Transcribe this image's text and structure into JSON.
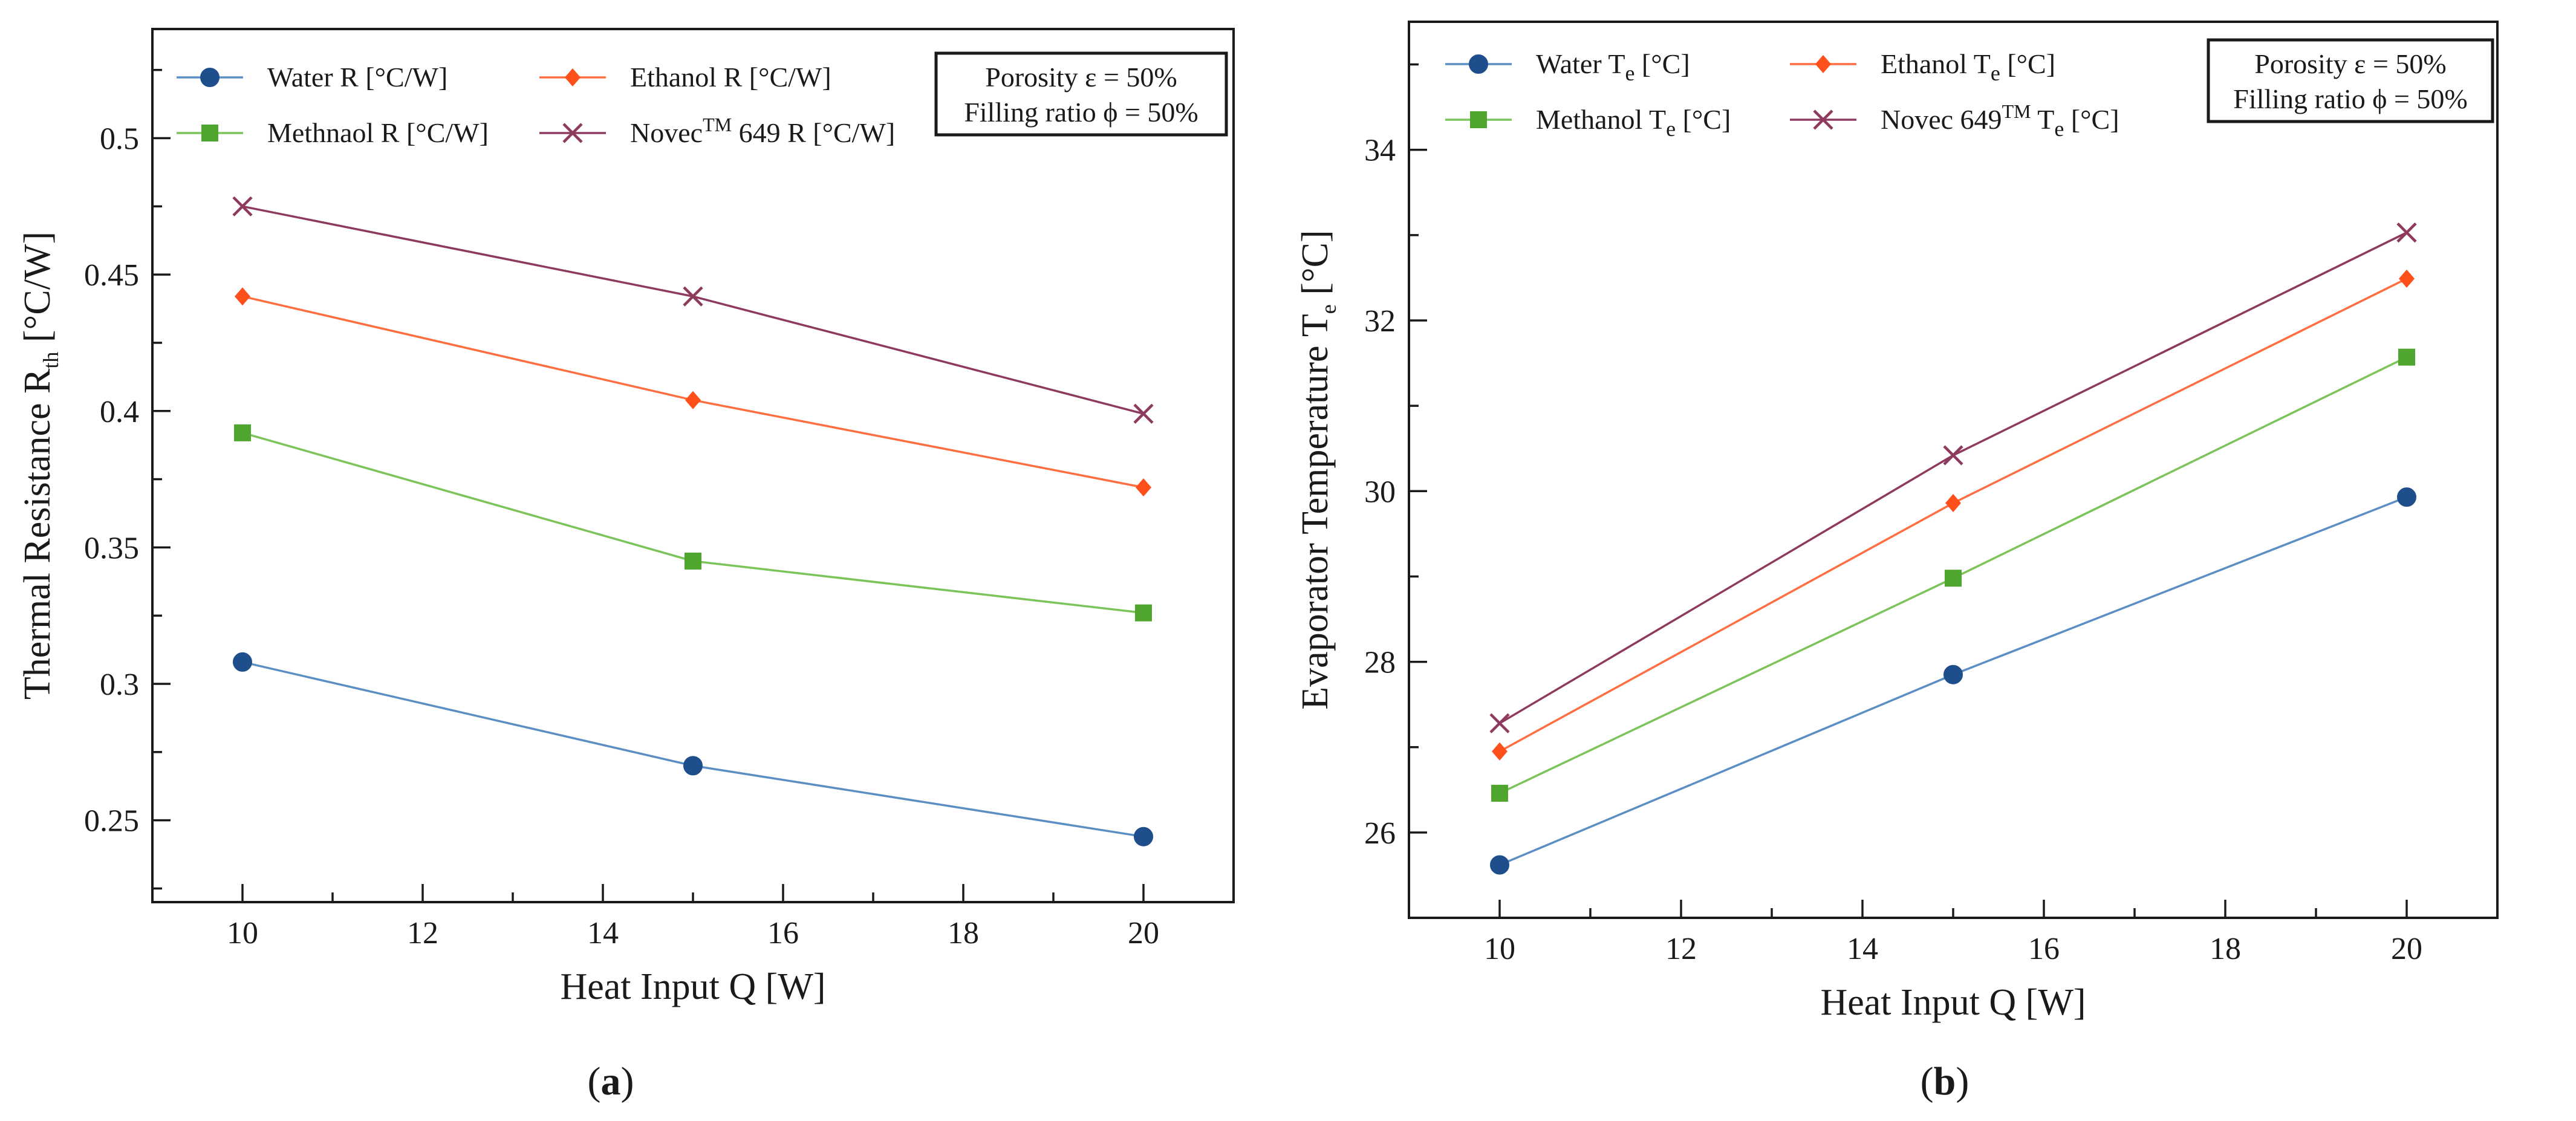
{
  "chart_data": [
    {
      "type": "line",
      "panel_label": "a",
      "xlabel": "Heat Input Q [W]",
      "ylabel": {
        "main": "Thermal Resistance R",
        "sub": "th",
        "units": " [°C/W]"
      },
      "xlim": [
        9,
        21
      ],
      "ylim": [
        0.22,
        0.54
      ],
      "x_ticks": [
        10,
        12,
        14,
        16,
        18,
        20
      ],
      "y_ticks": [
        0.25,
        0.3,
        0.35,
        0.4,
        0.45,
        0.5
      ],
      "y_tick_labels": [
        "0.25",
        "0.3",
        "0.35",
        "0.4",
        "0.45",
        "0.5"
      ],
      "x": [
        10,
        15,
        20
      ],
      "annotation": [
        "Porosity ε = 50%",
        "Filling ratio ϕ = 50%"
      ],
      "series": [
        {
          "name": "Water R [°C/W]",
          "parts": [
            {
              "t": "Water R [°C/W]"
            }
          ],
          "color": "#1f4e8c",
          "line_color": "#5b8fc4",
          "marker": "circle",
          "values": [
            0.308,
            0.27,
            0.244
          ]
        },
        {
          "name": "Ethanol R [°C/W]",
          "parts": [
            {
              "t": "Ethanol R [°C/W]"
            }
          ],
          "color": "#ff4f1a",
          "line_color": "#ff6e40",
          "marker": "diamond",
          "values": [
            0.442,
            0.404,
            0.372
          ]
        },
        {
          "name": "Methnaol R [°C/W]",
          "parts": [
            {
              "t": "Methnaol R [°C/W]"
            }
          ],
          "color": "#4fa52e",
          "line_color": "#7cc35a",
          "marker": "square",
          "values": [
            0.392,
            0.345,
            0.326
          ]
        },
        {
          "name": "NovecTM 649 R [°C/W]",
          "parts": [
            {
              "t": "Novec"
            },
            {
              "t": "TM",
              "sup": true
            },
            {
              "t": " 649 R [°C/W]"
            }
          ],
          "color": "#8e3a5e",
          "line_color": "#8e3a5e",
          "marker": "x",
          "values": [
            0.475,
            0.442,
            0.399
          ]
        }
      ]
    },
    {
      "type": "line",
      "panel_label": "b",
      "xlabel": "Heat Input Q [W]",
      "ylabel": {
        "main": "Evaporator Temperature T",
        "sub": "e",
        "units": " [°C]"
      },
      "xlim": [
        9,
        21
      ],
      "ylim": [
        25,
        35.5
      ],
      "x_ticks": [
        10,
        12,
        14,
        16,
        18,
        20
      ],
      "y_ticks": [
        26,
        28,
        30,
        32,
        34
      ],
      "y_tick_labels": [
        "26",
        "28",
        "30",
        "32",
        "34"
      ],
      "x": [
        10,
        15,
        20
      ],
      "annotation": [
        "Porosity ε = 50%",
        "Filling ratio ϕ = 50%"
      ],
      "series": [
        {
          "name": "Water Te [°C]",
          "parts": [
            {
              "t": "Water T"
            },
            {
              "t": "e",
              "sub": true
            },
            {
              "t": " [°C]"
            }
          ],
          "color": "#1f4e8c",
          "line_color": "#5b8fc4",
          "marker": "circle",
          "values": [
            25.62,
            27.85,
            29.93
          ]
        },
        {
          "name": "Ethanol Te [°C]",
          "parts": [
            {
              "t": "Ethanol T"
            },
            {
              "t": "e",
              "sub": true
            },
            {
              "t": " [°C]"
            }
          ],
          "color": "#ff4f1a",
          "line_color": "#ff6e40",
          "marker": "diamond",
          "values": [
            26.95,
            29.86,
            32.49
          ]
        },
        {
          "name": "Methanol Te [°C]",
          "parts": [
            {
              "t": "Methanol T"
            },
            {
              "t": "e",
              "sub": true
            },
            {
              "t": " [°C]"
            }
          ],
          "color": "#4fa52e",
          "line_color": "#7cc35a",
          "marker": "square",
          "values": [
            26.46,
            28.98,
            31.57
          ]
        },
        {
          "name": "Novec 649TM Te [°C]",
          "parts": [
            {
              "t": "Novec 649"
            },
            {
              "t": "TM",
              "sup": true
            },
            {
              "t": " T"
            },
            {
              "t": "e",
              "sub": true
            },
            {
              "t": " [°C]"
            }
          ],
          "color": "#8e3a5e",
          "line_color": "#8e3a5e",
          "marker": "x",
          "values": [
            27.28,
            30.42,
            33.03
          ]
        }
      ]
    }
  ]
}
